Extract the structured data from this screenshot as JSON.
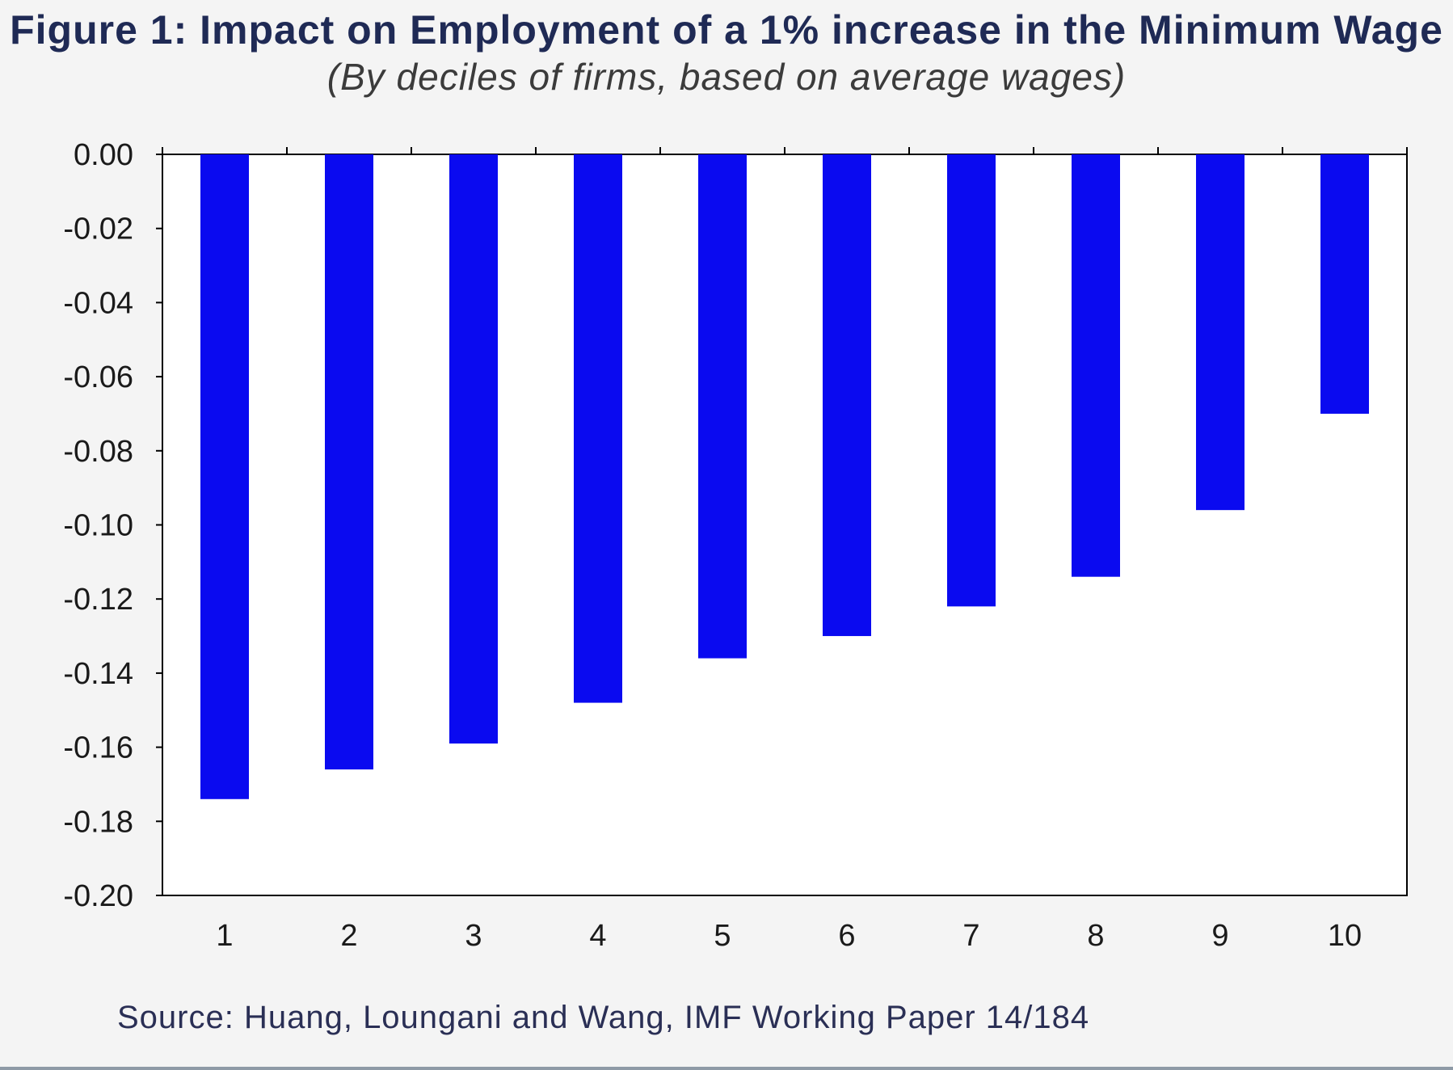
{
  "chart_data": {
    "type": "bar",
    "title": "Figure 1: Impact on Employment of a 1% increase in the Minimum Wage",
    "subtitle": "(By deciles of firms, based on average wages)",
    "categories": [
      "1",
      "2",
      "3",
      "4",
      "5",
      "6",
      "7",
      "8",
      "9",
      "10"
    ],
    "values": [
      -0.174,
      -0.166,
      -0.159,
      -0.148,
      -0.136,
      -0.13,
      -0.122,
      -0.114,
      -0.096,
      -0.07
    ],
    "xlabel": "",
    "ylabel": "",
    "ylim": [
      -0.2,
      0.0
    ],
    "yticks": [
      "0.00",
      "-0.02",
      "-0.04",
      "-0.06",
      "-0.08",
      "-0.10",
      "-0.12",
      "-0.14",
      "-0.16",
      "-0.18",
      "-0.20"
    ],
    "grid": false,
    "bar_color": "#0a0af0",
    "source": "Source: Huang, Loungani and Wang, IMF Working Paper 14/184"
  }
}
